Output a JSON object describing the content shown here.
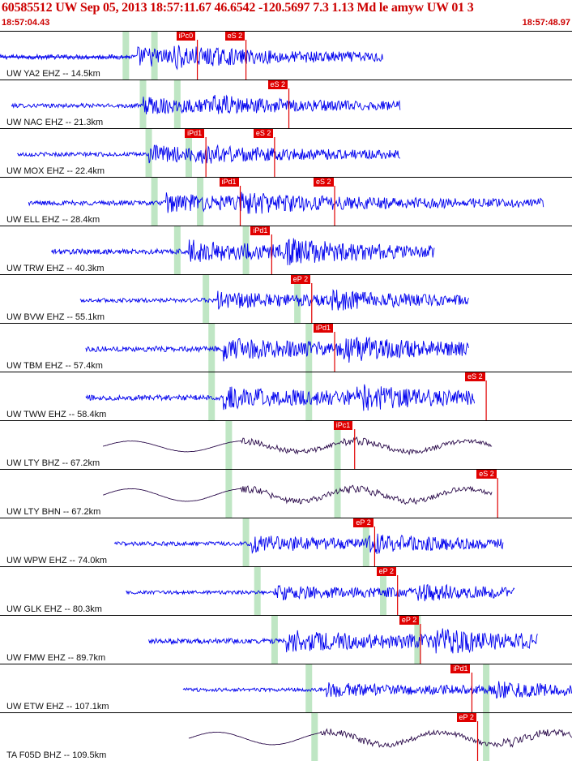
{
  "header": {
    "title": "60585512 UW Sep 05, 2013 18:57:11.67   46.6542 -120.5697  7.3 1.13 Md le amyw UW 01   3",
    "start_time": "18:57:04.43",
    "end_time": "18:57:48.97"
  },
  "colors": {
    "accent": "#cc0000",
    "trace_blue": "#0000ee",
    "trace_dark": "#2a0a4a",
    "marker_green": "#bfe6c4",
    "pick_red": "#e00000"
  },
  "stations": [
    {
      "label": "UW YA2 EHZ -- 14.5km",
      "picks": [
        {
          "label": "iPc0",
          "t": 0.345
        },
        {
          "label": "eS 2",
          "t": 0.43
        }
      ]
    },
    {
      "label": "UW NAC EHZ -- 21.3km",
      "picks": [
        {
          "label": "eS 2",
          "t": 0.505
        }
      ]
    },
    {
      "label": "UW MOX EHZ -- 22.4km",
      "picks": [
        {
          "label": "iPd1",
          "t": 0.36
        },
        {
          "label": "eS 2",
          "t": 0.48
        }
      ]
    },
    {
      "label": "UW ELL EHZ -- 28.4km",
      "picks": [
        {
          "label": "iPd1",
          "t": 0.42
        },
        {
          "label": "eS 2",
          "t": 0.585
        }
      ]
    },
    {
      "label": "UW TRW EHZ -- 40.3km",
      "picks": [
        {
          "label": "iPd1",
          "t": 0.475
        }
      ]
    },
    {
      "label": "UW BVW EHZ -- 55.1km",
      "picks": [
        {
          "label": "eP 2",
          "t": 0.545
        }
      ]
    },
    {
      "label": "UW TBM EHZ -- 57.4km",
      "picks": [
        {
          "label": "iPd1",
          "t": 0.585
        }
      ]
    },
    {
      "label": "UW TWW EHZ -- 58.4km",
      "picks": [
        {
          "label": "eS 2",
          "t": 0.85
        }
      ]
    },
    {
      "label": "UW LTY BHZ -- 67.2km",
      "picks": [
        {
          "label": "iPc1",
          "t": 0.62
        }
      ]
    },
    {
      "label": "UW LTY BHN -- 67.2km",
      "picks": [
        {
          "label": "eS 2",
          "t": 0.87
        }
      ]
    },
    {
      "label": "UW WPW EHZ -- 74.0km",
      "picks": [
        {
          "label": "eP 2",
          "t": 0.655
        }
      ]
    },
    {
      "label": "UW GLK EHZ -- 80.3km",
      "picks": [
        {
          "label": "eP 2",
          "t": 0.695
        }
      ]
    },
    {
      "label": "UW FMW EHZ -- 89.7km",
      "picks": [
        {
          "label": "eP 2",
          "t": 0.735
        }
      ]
    },
    {
      "label": "UW ETW EHZ -- 107.1km",
      "picks": [
        {
          "label": "iPd1",
          "t": 0.825
        }
      ]
    },
    {
      "label": "TA F05D BHZ -- 109.5km",
      "picks": [
        {
          "label": "eP 2",
          "t": 0.835
        }
      ]
    }
  ]
}
